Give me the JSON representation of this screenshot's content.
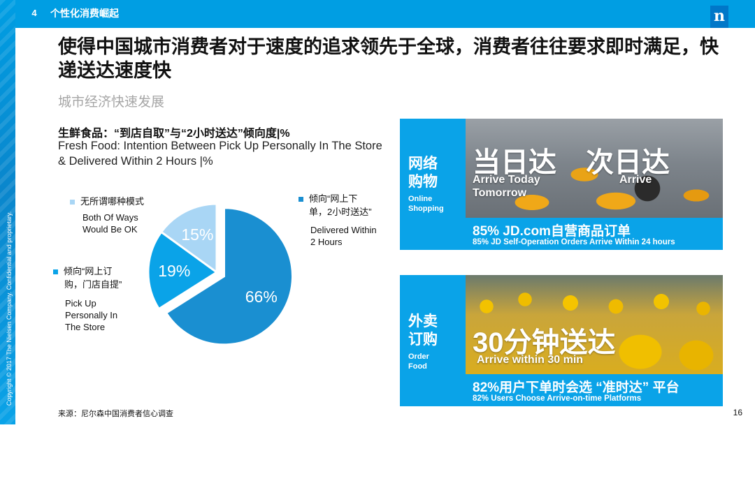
{
  "header": {
    "section_number": "4",
    "section_title": "个性化消费崛起",
    "logo_letter": "n"
  },
  "copyright": "Copyright © 2017 The Nielsen Company. Confidential and proprietary.",
  "title": "使得中国城市消费者对于速度的追求领先于全球，消费者往往要求即时满足，快递送达速度快",
  "subtitle": "城市经济快速发展",
  "chart_data": {
    "type": "pie",
    "title": "生鲜食品：“到店自取”与“2小时送达”倾向度|%",
    "subtitle": "Fresh Food: Intention Between Pick Up Personally In The Store &  Delivered Within 2 Hours |%",
    "slices": [
      {
        "label_cn": "倾向“网上下单，2小时送达”",
        "label_en": "Delivered Within 2 Hours",
        "value": 66,
        "display": "66%",
        "color": "#1a8fd1"
      },
      {
        "label_cn": "倾向“网上订购，门店自提”",
        "label_en": "Pick Up Personally In The Store",
        "value": 19,
        "display": "19%",
        "color": "#0aa3e8"
      },
      {
        "label_cn": "无所谓哪种模式",
        "label_en": "Both Of Ways Would Be OK",
        "value": 15,
        "display": "15%",
        "color": "#a9d6f5"
      }
    ],
    "exploded": "66%"
  },
  "labels": {
    "both_cn": "无所谓哪种模式",
    "both_en_1": "Both Of Ways",
    "both_en_2": "Would Be OK",
    "delivered_cn_1": "倾向“网上下",
    "delivered_cn_2": "单，2小时送达”",
    "delivered_en_1": "Delivered Within",
    "delivered_en_2": "2 Hours",
    "pickup_cn_1": "倾向“网上订",
    "pickup_cn_2": "购，门店自提”",
    "pickup_en_1": "Pick Up",
    "pickup_en_2": "Personally In",
    "pickup_en_3": "The Store"
  },
  "panels": [
    {
      "side_cn_1": "网络",
      "side_cn_2": "购物",
      "side_en_1": "Online",
      "side_en_2": "Shopping",
      "big_1": "当日达",
      "big_2": "次日达",
      "en_1a": "Arrive Today",
      "en_1b": "Tomorrow",
      "en_2": "Arrive",
      "stat": "85% JD.com自营商品订单",
      "stat_en": "85% JD Self-Operation Orders Arrive  Within 24 hours"
    },
    {
      "side_cn_1": "外卖",
      "side_cn_2": "订购",
      "side_en_1": "Order",
      "side_en_2": "Food",
      "big": "30分钟送达",
      "en": "Arrive within 30 min",
      "stat": "82%用户下单时会选 “准时达” 平台",
      "stat_en": "82% Users Choose Arrive-on-time Platforms"
    }
  ],
  "footer": {
    "source": "来源：尼尔森中国消费者信心调查",
    "page": "16"
  }
}
